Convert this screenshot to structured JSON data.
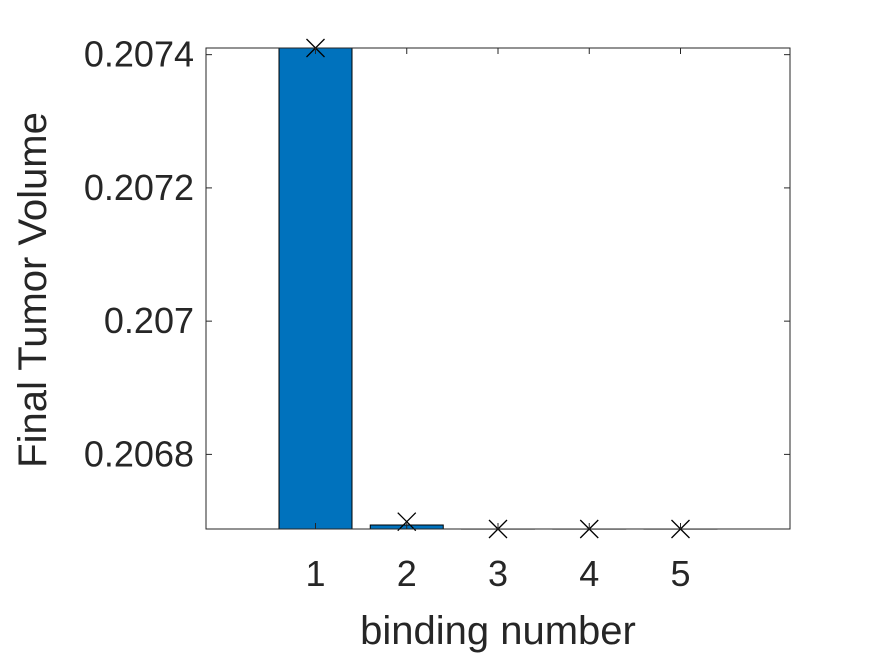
{
  "chart_data": {
    "type": "bar",
    "title": "",
    "xlabel": "binding number",
    "ylabel": "Final Tumor Volume",
    "categories": [
      "1",
      "2",
      "3",
      "4",
      "5"
    ],
    "values": [
      0.20741,
      0.206694,
      0.206688,
      0.206688,
      0.206688
    ],
    "markers": [
      0.20741,
      0.206699,
      0.206688,
      0.206688,
      0.206688
    ],
    "xlim": [
      -0.2,
      6.2
    ],
    "ylim": [
      0.206688,
      0.20741
    ],
    "yticks": [
      0.2068,
      0.207,
      0.2072,
      0.2074
    ],
    "ytick_labels": [
      "0.2068",
      "0.207",
      "0.2072",
      "0.2074"
    ],
    "bar_color": "#0072BD",
    "marker_color": "#000000",
    "marker_symbol": "x",
    "grid": false,
    "legend": "none"
  }
}
